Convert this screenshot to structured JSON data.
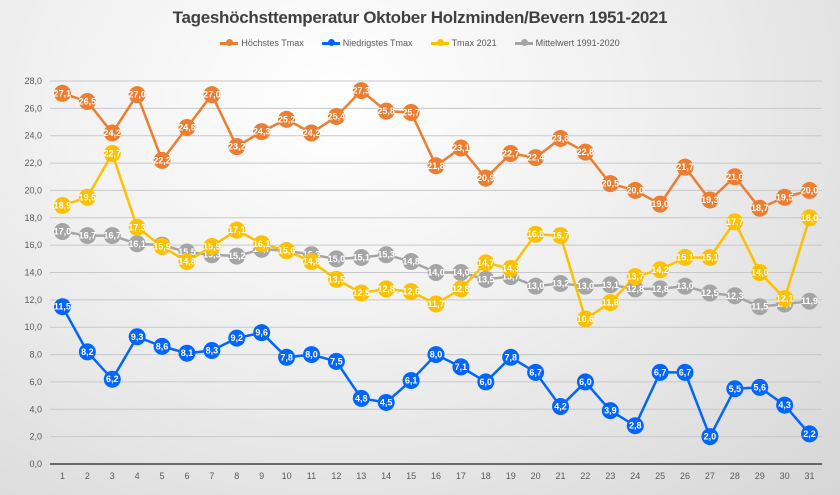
{
  "chart_data": {
    "type": "line",
    "title": "Tageshöchsttemperatur Oktober Holzminden/Bevern 1951-2021",
    "xlabel": "",
    "ylabel": "",
    "ylim": [
      0,
      28
    ],
    "yticks": [
      "0,0",
      "2,0",
      "4,0",
      "6,0",
      "8,0",
      "10,0",
      "12,0",
      "14,0",
      "16,0",
      "18,0",
      "20,0",
      "22,0",
      "24,0",
      "26,0",
      "28,0"
    ],
    "ytick_values": [
      0,
      2,
      4,
      6,
      8,
      10,
      12,
      14,
      16,
      18,
      20,
      22,
      24,
      26,
      28
    ],
    "grid": true,
    "legend_position": "top",
    "categories": [
      "1",
      "2",
      "3",
      "4",
      "5",
      "6",
      "7",
      "8",
      "9",
      "10",
      "11",
      "12",
      "13",
      "14",
      "15",
      "16",
      "17",
      "18",
      "19",
      "20",
      "21",
      "22",
      "23",
      "24",
      "25",
      "26",
      "27",
      "28",
      "29",
      "30",
      "31"
    ],
    "series": [
      {
        "name": "Höchstes Tmax",
        "color": "#ED7D31",
        "values": [
          27.1,
          26.5,
          24.2,
          27.0,
          22.2,
          24.6,
          27.0,
          23.2,
          24.3,
          25.2,
          24.2,
          25.4,
          27.3,
          25.8,
          25.7,
          21.8,
          23.1,
          20.9,
          22.7,
          22.4,
          23.8,
          22.8,
          20.5,
          20.0,
          19.0,
          21.7,
          19.3,
          21.0,
          18.7,
          19.5,
          20.0
        ]
      },
      {
        "name": "Niedrigstes Tmax",
        "color": "#0066FF",
        "values": [
          11.5,
          8.2,
          6.2,
          9.3,
          8.6,
          8.1,
          8.3,
          9.2,
          9.6,
          7.8,
          8.0,
          7.5,
          4.8,
          4.5,
          6.1,
          8.0,
          7.1,
          6.0,
          7.8,
          6.7,
          4.2,
          6.0,
          3.9,
          2.8,
          6.7,
          6.7,
          2.0,
          5.5,
          5.6,
          4.3,
          2.2
        ]
      },
      {
        "name": "Tmax 2021",
        "color": "#FFC000",
        "values": [
          18.9,
          19.5,
          22.7,
          17.3,
          15.9,
          14.8,
          15.9,
          17.1,
          16.1,
          15.6,
          14.8,
          13.5,
          12.5,
          12.8,
          12.6,
          11.7,
          12.8,
          14.7,
          14.3,
          16.8,
          16.7,
          10.6,
          11.8,
          13.7,
          14.2,
          15.1,
          15.1,
          17.7,
          14.0,
          12.1,
          18.0
        ]
      },
      {
        "name": "Mittelwert 1991-2020",
        "color": "#A5A5A5",
        "values": [
          17.0,
          16.7,
          16.7,
          16.1,
          16.0,
          15.5,
          15.3,
          15.2,
          15.7,
          15.6,
          15.3,
          15.0,
          15.1,
          15.3,
          14.8,
          14.0,
          14.0,
          13.5,
          13.7,
          13.0,
          13.2,
          13.0,
          13.1,
          12.8,
          12.8,
          13.0,
          12.5,
          12.3,
          11.5,
          11.7,
          11.9
        ]
      }
    ]
  }
}
